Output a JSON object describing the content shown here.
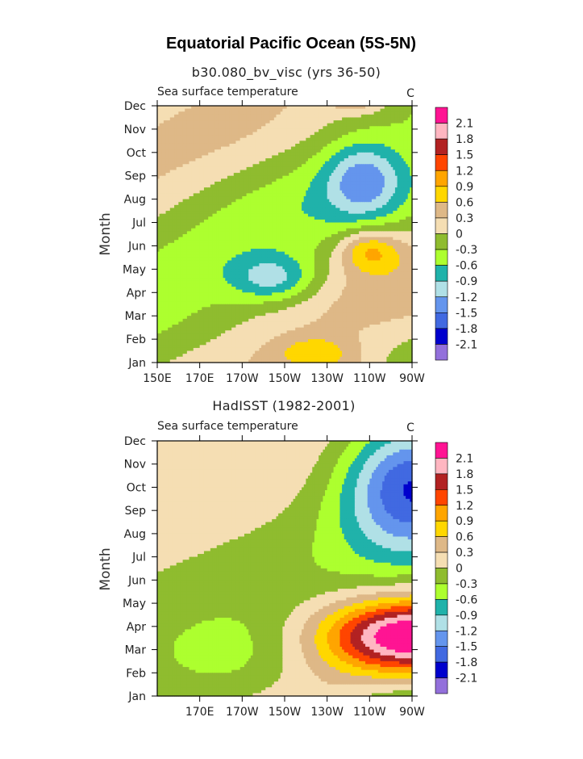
{
  "page_title": "Equatorial Pacific Ocean (5S-5N)",
  "palette": [
    "#9370DB",
    "#0000CD",
    "#4169E1",
    "#6495ED",
    "#B0E0E6",
    "#20B2AA",
    "#ADFF2F",
    "#8FBC2F",
    "#F5DEB3",
    "#DEB887",
    "#FFD700",
    "#FFA500",
    "#FF4500",
    "#B22222",
    "#FFB6C1",
    "#FF1493"
  ],
  "chart_data": [
    {
      "type": "heatmap",
      "subtitle": "b30.080_bv_visc (yrs 36-50)",
      "field_title": "Sea surface temperature",
      "units": "C",
      "ylabel": "Month",
      "y_ticks": [
        "Jan",
        "Feb",
        "Mar",
        "Apr",
        "May",
        "Jun",
        "Jul",
        "Aug",
        "Sep",
        "Oct",
        "Nov",
        "Dec"
      ],
      "x_ticks": [
        "150E",
        "170E",
        "170W",
        "150W",
        "130W",
        "110W",
        "90W"
      ],
      "x_tick_lons": [
        150,
        170,
        190,
        210,
        230,
        250,
        270
      ],
      "xlim": [
        150,
        270
      ],
      "levels": [
        "2.1",
        "1.8",
        "1.5",
        "1.2",
        "0.9",
        "0.6",
        "0.3",
        "0",
        "-0.3",
        "-0.6",
        "-0.9",
        "-1.2",
        "-1.5",
        "-1.8",
        "-2.1"
      ],
      "anomaly_features": [
        {
          "month": 7.8,
          "lon": 247,
          "value": -1.0,
          "extent_lon": 18,
          "extent_month": 1.6
        },
        {
          "month": 3.6,
          "lon": 205,
          "value": -0.9,
          "extent_lon": 20,
          "extent_month": 1.0
        },
        {
          "month": 4.8,
          "lon": 250,
          "value": 0.9,
          "extent_lon": 14,
          "extent_month": 0.9
        },
        {
          "month": 0.4,
          "lon": 225,
          "value": 0.6,
          "extent_lon": 18,
          "extent_month": 0.7
        },
        {
          "month": 11.3,
          "lon": 245,
          "value": 0.6,
          "extent_lon": 14,
          "extent_month": 0.6
        }
      ]
    },
    {
      "type": "heatmap",
      "subtitle": "HadISST (1982-2001)",
      "field_title": "Sea surface temperature",
      "units": "C",
      "ylabel": "Month",
      "y_ticks": [
        "Jan",
        "Feb",
        "Mar",
        "Apr",
        "May",
        "Jun",
        "Jul",
        "Aug",
        "Sep",
        "Oct",
        "Nov",
        "Dec"
      ],
      "x_ticks": [
        "170E",
        "170W",
        "150W",
        "130W",
        "110W",
        "90W"
      ],
      "x_tick_lons": [
        170,
        190,
        210,
        230,
        250,
        270
      ],
      "xlim": [
        150,
        270
      ],
      "levels": [
        "2.1",
        "1.8",
        "1.5",
        "1.2",
        "0.9",
        "0.6",
        "0.3",
        "0",
        "-0.3",
        "-0.6",
        "-0.9",
        "-1.2",
        "-1.5",
        "-1.8",
        "-2.1"
      ],
      "anomaly_features": [
        {
          "month": 9.3,
          "lon": 268,
          "value": -1.7,
          "extent_lon": 32,
          "extent_month": 3.0
        },
        {
          "month": 2.6,
          "lon": 268,
          "value": 2.3,
          "extent_lon": 40,
          "extent_month": 1.6
        },
        {
          "month": 1.6,
          "lon": 185,
          "value": -0.4,
          "extent_lon": 40,
          "extent_month": 2.0
        }
      ]
    }
  ]
}
